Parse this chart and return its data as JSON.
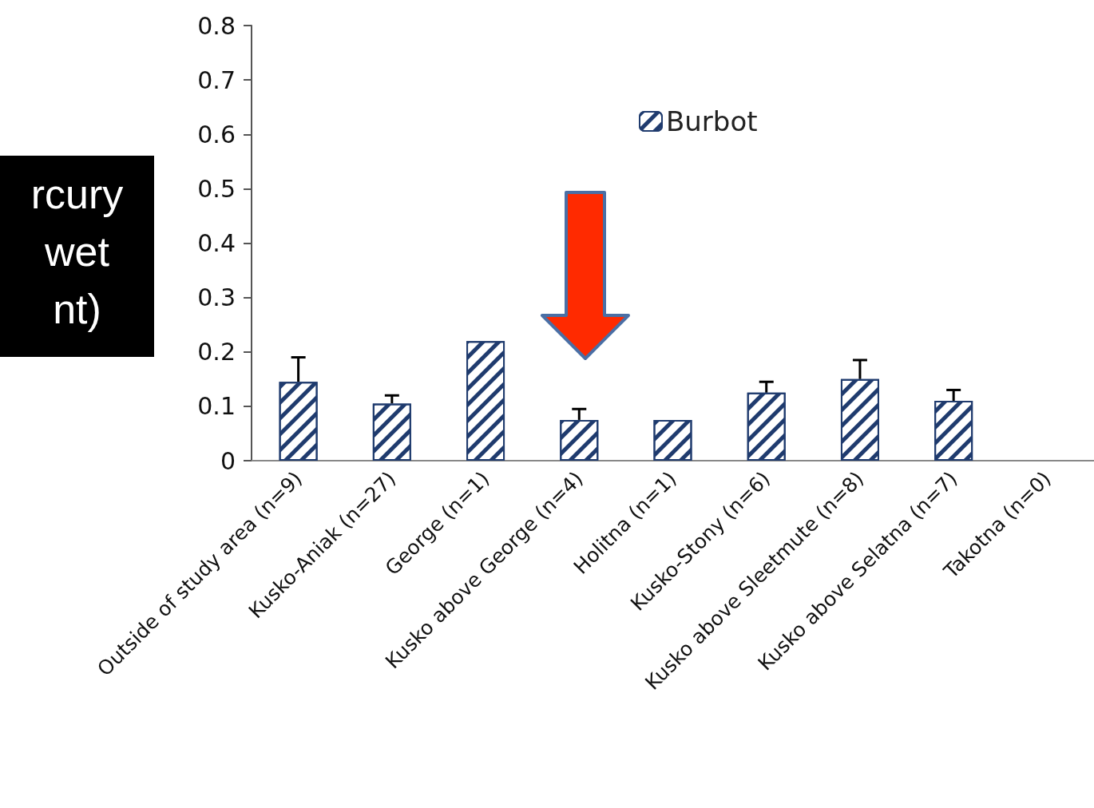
{
  "chart_data": {
    "type": "bar",
    "ylabel": "rcury\nwet\nnt)",
    "categories": [
      "Outside of study area (n=9)",
      "Kusko-Aniak (n=27)",
      "George (n=1)",
      "Kusko above George (n=4)",
      "Holitna (n=1)",
      "Kusko-Stony (n=6)",
      "Kusko above Sleetmute (n=8)",
      "Kusko above Selatna (n=7)",
      "Takotna (n=0)"
    ],
    "series": [
      {
        "name": "Burbot",
        "color": "#1f3b6e",
        "values": [
          0.145,
          0.105,
          0.22,
          0.075,
          0.075,
          0.125,
          0.15,
          0.11,
          null
        ],
        "errors": [
          [
            0.145,
            0.19
          ],
          [
            0.105,
            0.12
          ],
          null,
          [
            0.075,
            0.095
          ],
          null,
          [
            0.125,
            0.145
          ],
          [
            0.15,
            0.185
          ],
          [
            0.11,
            0.13
          ],
          null
        ]
      }
    ],
    "ylim": [
      0,
      0.8
    ],
    "yticks": [
      {
        "value": 0,
        "label": "0"
      },
      0.1,
      0.2,
      0.3,
      0.4,
      0.5,
      0.6,
      0.7,
      0.8
    ],
    "legend": "top right",
    "grid": false
  }
}
